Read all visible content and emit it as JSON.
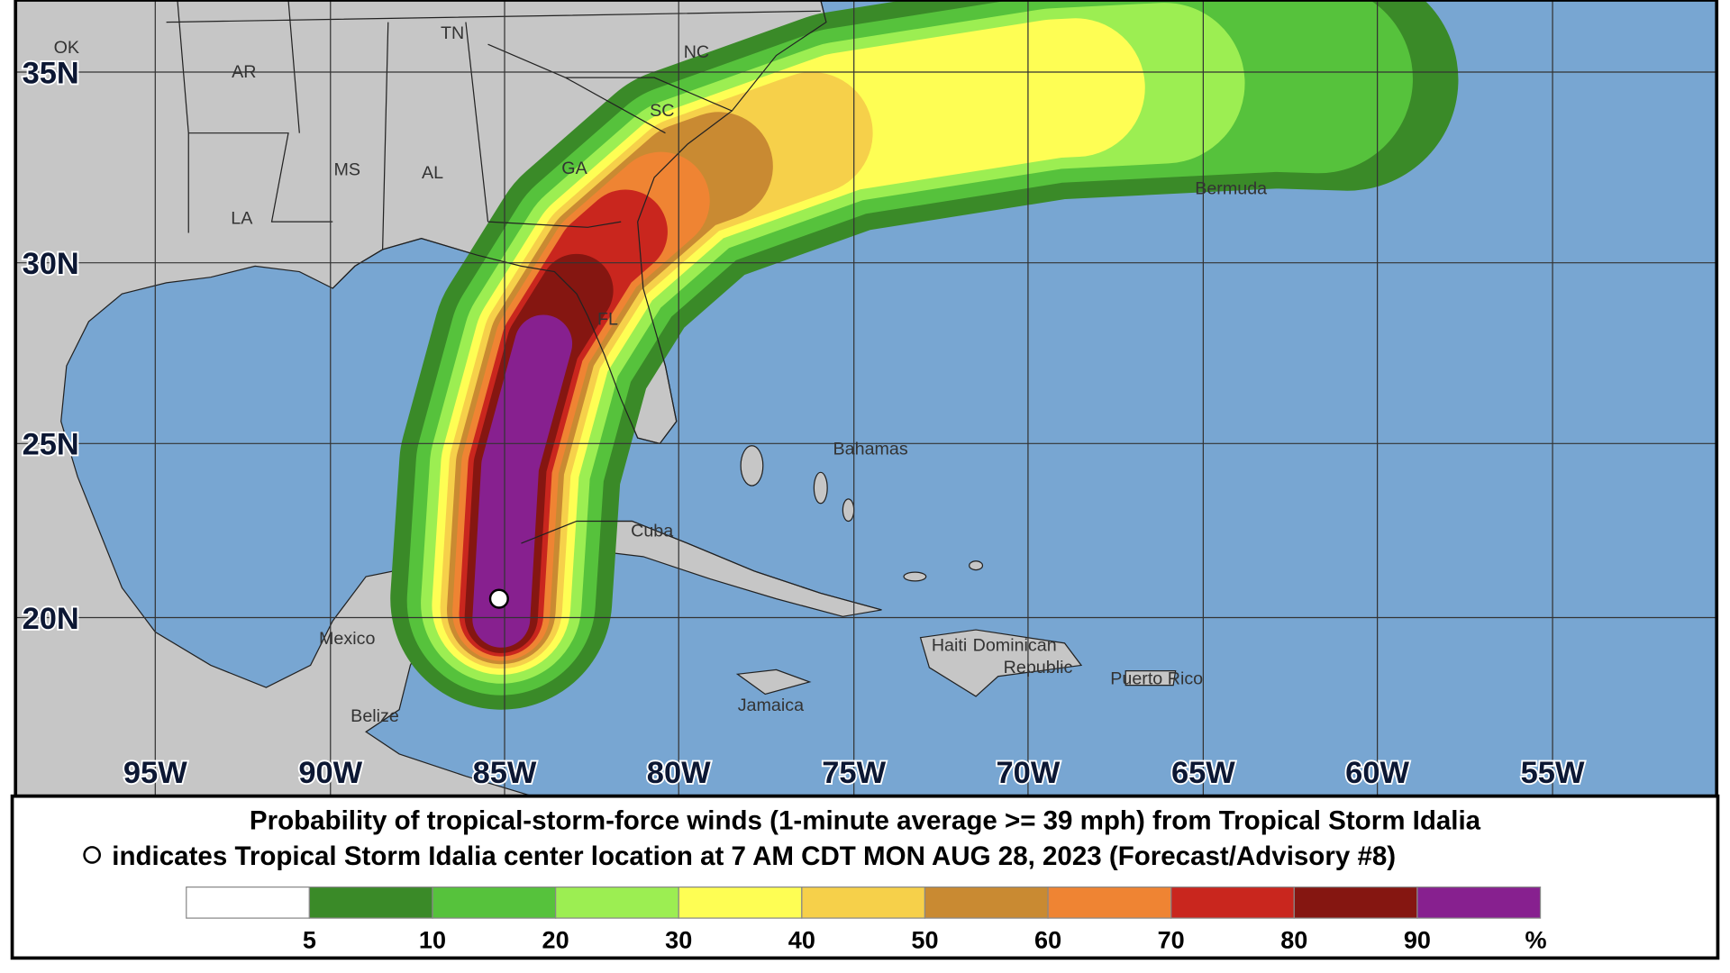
{
  "map": {
    "lat_labels": [
      "35N",
      "30N",
      "25N",
      "20N"
    ],
    "lon_labels": [
      "95W",
      "90W",
      "85W",
      "80W",
      "75W",
      "70W",
      "65W",
      "60W",
      "55W"
    ],
    "places": [
      "OK",
      "AR",
      "TN",
      "NC",
      "SC",
      "GA",
      "MS",
      "AL",
      "LA",
      "FL",
      "Bermuda",
      "Bahamas",
      "Cuba",
      "Mexico",
      "Belize",
      "Haiti",
      "Dominican",
      "Republic",
      "Puerto Rico",
      "Jamaica"
    ]
  },
  "caption": {
    "line1": "Probability of tropical-storm-force winds (1-minute average >= 39 mph) from Tropical Storm Idalia",
    "line2": "indicates Tropical Storm Idalia center location at 7 AM CDT MON AUG 28, 2023 (Forecast/Advisory #8)"
  },
  "legend": {
    "colors": [
      "#ffffff",
      "#3a8a28",
      "#56c23c",
      "#9cee52",
      "#fefe54",
      "#f6d04a",
      "#c98a32",
      "#ef8433",
      "#c9261e",
      "#851611",
      "#87208f"
    ],
    "ticks": [
      5,
      10,
      20,
      30,
      40,
      50,
      60,
      70,
      80,
      90
    ],
    "unit": "%"
  }
}
